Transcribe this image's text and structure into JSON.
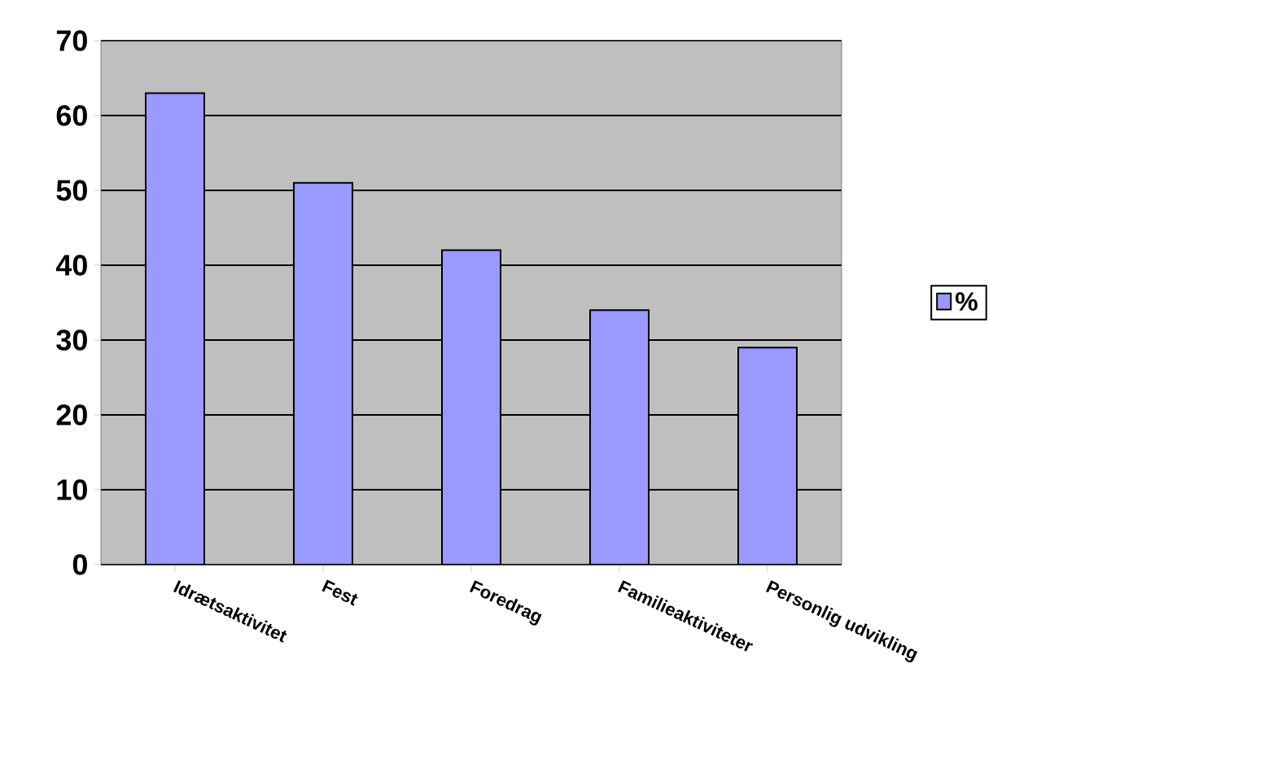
{
  "chart_data": {
    "type": "bar",
    "categories": [
      "Idrætsaktivitet",
      "Fest",
      "Foredrag",
      "Familieaktiviteter",
      "Personlig udvikling"
    ],
    "series": [
      {
        "name": "%",
        "color": "#9999ff",
        "values": [
          63,
          51,
          42,
          34,
          29
        ]
      }
    ],
    "ylim": [
      0,
      70
    ],
    "yticks": [
      0,
      10,
      20,
      30,
      40,
      50,
      60,
      70
    ],
    "grid": "y",
    "legend": "right"
  }
}
